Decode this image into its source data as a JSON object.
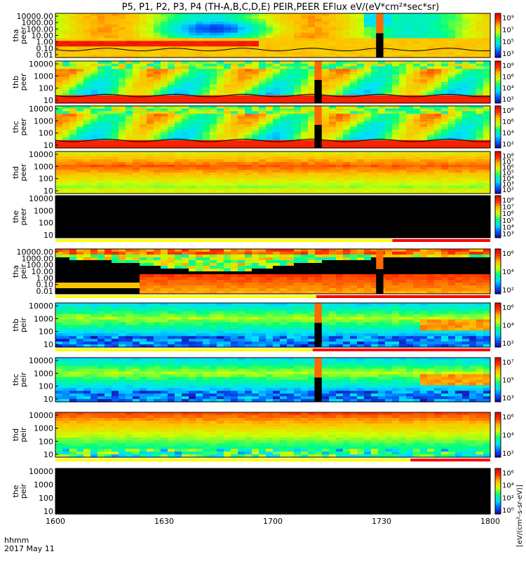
{
  "title": "P5, P1, P2, P3, P4 (TH-A,B,C,D,E) PEIR,PEER EFlux eV/(eV*cm²*sec*sr)",
  "time_axis": {
    "label_line1": "hhmm",
    "label_line2": "2017 May 11",
    "ticks": [
      "1600",
      "1630",
      "1700",
      "1730",
      "1800"
    ],
    "tick_minutes": [
      0,
      30,
      60,
      90,
      120
    ]
  },
  "colorbar_unit": "[eV/(cm²-s-sr-eV)]",
  "colors": {
    "black": "#000000",
    "flag_yellow": "#ffff00",
    "flag_red": "#ff0000",
    "trace": "#000000"
  },
  "chart_data": {
    "type": "heatmap",
    "x_unit": "minutes after 1600 UT",
    "xlim": [
      0,
      120
    ],
    "colormap": [
      "#1a00a0",
      "#0060ff",
      "#00e0ff",
      "#00ff80",
      "#d0ff00",
      "#ffc000",
      "#ff3000",
      "#e00000"
    ],
    "panels": [
      {
        "probe": "tha",
        "species": "peer",
        "label": [
          "tha",
          "peer"
        ],
        "yticks": [
          "10000.00",
          "1000.00",
          "100.00",
          "10.00",
          "1.00",
          "0.10",
          "0.01"
        ],
        "ylim": [
          0.01,
          10000
        ],
        "cticks": [
          "10⁹",
          "10⁷",
          "10⁵",
          "10³"
        ],
        "gaps": [
          [
            88.5,
            90.5
          ]
        ],
        "flag": null,
        "data": "wide"
      },
      {
        "probe": "thb",
        "species": "peer",
        "label": [
          "thb",
          "peer"
        ],
        "yticks": [
          "10000",
          "1000",
          "100",
          "10"
        ],
        "ylim": [
          10,
          30000
        ],
        "cticks": [
          "10⁸",
          "10⁶",
          "10⁴",
          "10²"
        ],
        "gaps": [
          [
            71.5,
            73.5
          ]
        ],
        "flag": null,
        "data": "peer"
      },
      {
        "probe": "thc",
        "species": "peer",
        "label": [
          "thc",
          "peer"
        ],
        "yticks": [
          "10000",
          "1000",
          "100",
          "10"
        ],
        "ylim": [
          10,
          30000
        ],
        "cticks": [
          "10⁸",
          "10⁶",
          "10⁴",
          "10²"
        ],
        "gaps": [
          [
            71.5,
            73.5
          ]
        ],
        "flag": null,
        "data": "peer"
      },
      {
        "probe": "thd",
        "species": "peer",
        "label": [
          "thd",
          "peer"
        ],
        "yticks": [
          "10000",
          "1000",
          "100",
          "10"
        ],
        "ylim": [
          10,
          30000
        ],
        "cticks": [
          "10⁸",
          "10⁷",
          "10⁶",
          "10⁵",
          "10⁴",
          "10³",
          "10²"
        ],
        "gaps": [],
        "flag": null,
        "data": "peer_d"
      },
      {
        "probe": "the",
        "species": "peer",
        "label": [
          "the",
          "peer"
        ],
        "yticks": [
          "10000",
          "1000",
          "100",
          "10"
        ],
        "ylim": [
          10,
          30000
        ],
        "cticks": [
          "10⁸",
          "10⁷",
          "10⁶",
          "10⁵",
          "10⁴",
          "10³"
        ],
        "gaps": [],
        "flag": {
          "yellow": [
            0,
            93
          ],
          "red": [
            93,
            120
          ]
        },
        "data": "empty"
      },
      {
        "probe": "tha",
        "species": "peir",
        "label": [
          "tha",
          "peir"
        ],
        "yticks": [
          "10000.00",
          "1000.00",
          "100.00",
          "10.00",
          "1.00",
          "0.10",
          "0.01"
        ],
        "ylim": [
          0.01,
          10000
        ],
        "cticks": [
          "10⁶",
          "10⁴",
          "10²"
        ],
        "gaps": [
          [
            88.5,
            90.5
          ]
        ],
        "flag": {
          "yellow": [
            0,
            72
          ],
          "red": [
            72,
            120
          ]
        },
        "data": "wide_i"
      },
      {
        "probe": "thb",
        "species": "peir",
        "label": [
          "thb",
          "peir"
        ],
        "yticks": [
          "10000",
          "1000",
          "100",
          "10"
        ],
        "ylim": [
          10,
          30000
        ],
        "cticks": [
          "10⁶",
          "10⁴",
          "10²"
        ],
        "gaps": [
          [
            71.5,
            73.5
          ]
        ],
        "flag": {
          "yellow": [
            0,
            71
          ],
          "red": [
            71,
            120
          ]
        },
        "data": "peir"
      },
      {
        "probe": "thc",
        "species": "peir",
        "label": [
          "thc",
          "peir"
        ],
        "yticks": [
          "10000",
          "1000",
          "100",
          "10"
        ],
        "ylim": [
          10,
          30000
        ],
        "cticks": [
          "10⁷",
          "10⁵",
          "10³"
        ],
        "gaps": [
          [
            71.5,
            73.5
          ]
        ],
        "flag": null,
        "data": "peir"
      },
      {
        "probe": "thd",
        "species": "peir",
        "label": [
          "thd",
          "peir"
        ],
        "yticks": [
          "10000",
          "1000",
          "100",
          "10"
        ],
        "ylim": [
          10,
          30000
        ],
        "cticks": [
          "10⁶",
          "10⁴",
          "10²"
        ],
        "gaps": [],
        "flag": {
          "yellow": [
            0,
            98
          ],
          "red": [
            98,
            120
          ]
        },
        "data": "peir_d"
      },
      {
        "probe": "the",
        "species": "peir",
        "label": [
          "the",
          "peir"
        ],
        "yticks": [
          "10000",
          "1000",
          "100",
          "10"
        ],
        "ylim": [
          10,
          30000
        ],
        "cticks": [
          "10⁶",
          "10⁴",
          "10²",
          "10⁰"
        ],
        "gaps": [],
        "flag": null,
        "data": "empty"
      }
    ]
  }
}
